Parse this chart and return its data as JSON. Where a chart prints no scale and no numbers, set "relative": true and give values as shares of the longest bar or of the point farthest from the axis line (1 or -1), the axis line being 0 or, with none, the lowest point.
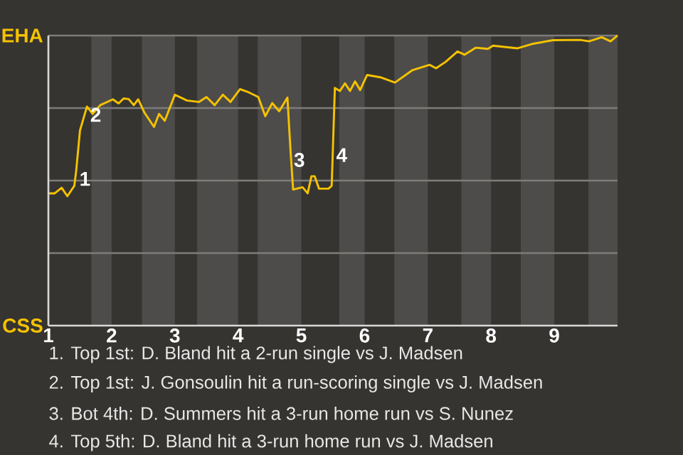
{
  "chart_data": {
    "type": "line",
    "relative": true,
    "x": [
      1,
      1.1,
      1.21,
      1.3,
      1.41,
      1.44,
      1.5,
      1.61,
      1.7,
      1.82,
      2.02,
      2.11,
      2.19,
      2.27,
      2.35,
      2.42,
      2.52,
      2.67,
      2.75,
      2.84,
      3,
      3.19,
      3.38,
      3.5,
      3.63,
      3.76,
      3.88,
      4.03,
      4.17,
      4.32,
      4.43,
      4.54,
      4.65,
      4.78,
      4.83,
      4.87,
      5.02,
      5.1,
      5.16,
      5.21,
      5.28,
      5.43,
      5.48,
      5.5,
      5.53,
      5.61,
      5.69,
      5.77,
      5.85,
      5.93,
      6.04,
      6.25,
      6.48,
      6.76,
      7.03,
      7.13,
      7.28,
      7.47,
      7.58,
      7.76,
      7.95,
      8.03,
      8.42,
      8.65,
      8.98,
      9.41,
      9.55,
      9.75,
      9.89,
      10
    ],
    "series": [
      {
        "color": "#f5c200",
        "values": [
          0.456,
          0.456,
          0.475,
          0.446,
          0.482,
          0.534,
          0.673,
          0.755,
          0.73,
          0.76,
          0.78,
          0.766,
          0.783,
          0.781,
          0.76,
          0.78,
          0.734,
          0.685,
          0.73,
          0.706,
          0.796,
          0.776,
          0.771,
          0.788,
          0.76,
          0.796,
          0.771,
          0.815,
          0.804,
          0.788,
          0.722,
          0.767,
          0.739,
          0.786,
          0.6,
          0.469,
          0.477,
          0.456,
          0.515,
          0.515,
          0.472,
          0.472,
          0.482,
          0.616,
          0.819,
          0.809,
          0.835,
          0.809,
          0.842,
          0.812,
          0.864,
          0.856,
          0.838,
          0.881,
          0.899,
          0.887,
          0.909,
          0.945,
          0.934,
          0.958,
          0.954,
          0.965,
          0.956,
          0.971,
          0.984,
          0.985,
          0.98,
          0.994,
          0.98,
          1
        ]
      }
    ],
    "xlim": [
      1,
      10
    ],
    "xticks": [
      1,
      2,
      3,
      4,
      5,
      6,
      7,
      8,
      9
    ],
    "marker": "none",
    "line_style": "solid",
    "ref_lines": [
      {
        "axis": "y",
        "value": 0.25,
        "color": "#7d7c7a"
      },
      {
        "axis": "y",
        "value": 0.5,
        "color": "#7d7c7a"
      },
      {
        "axis": "y",
        "value": 0.75,
        "color": "#7d7c7a"
      },
      {
        "axis": "y",
        "value": 1,
        "color": "#7d7c7a",
        "label": "EHA"
      }
    ],
    "ylabel": "CSS",
    "bands": [
      {
        "axis": "x",
        "from": 1.68,
        "to": 2,
        "color": "#4d4c4a"
      },
      {
        "axis": "x",
        "from": 2.48,
        "to": 3,
        "color": "#4d4c4a"
      },
      {
        "axis": "x",
        "from": 3.35,
        "to": 4,
        "color": "#4d4c4a"
      },
      {
        "axis": "x",
        "from": 4.31,
        "to": 5,
        "color": "#4d4c4a"
      },
      {
        "axis": "x",
        "from": 5.6,
        "to": 6,
        "color": "#4d4c4a"
      },
      {
        "axis": "x",
        "from": 6.47,
        "to": 7,
        "color": "#4d4c4a"
      },
      {
        "axis": "x",
        "from": 7.53,
        "to": 8,
        "color": "#4d4c4a"
      },
      {
        "axis": "x",
        "from": 8.47,
        "to": 9,
        "color": "#4d4c4a"
      },
      {
        "axis": "x",
        "from": 9.54,
        "to": 10,
        "color": "#4d4c4a"
      }
    ],
    "annotations": [
      {
        "text": "1",
        "x": 1.44,
        "y": 0.534
      },
      {
        "text": "2",
        "x": 1.61,
        "y": 0.755
      },
      {
        "text": "3",
        "x": 4.83,
        "y": 0.6
      },
      {
        "text": "4",
        "x": 5.5,
        "y": 0.616
      },
      "1. Top 1st: D. Bland hit a 2-run single vs J. Madsen",
      "2. Top 1st: J. Gonsoulin hit a run-scoring single vs J. Madsen",
      "3. Bot 4th: D. Summers hit a 3-run home run vs S. Nunez",
      "4. Top 5th: D. Bland hit a 3-run home run vs J. Madsen"
    ]
  }
}
